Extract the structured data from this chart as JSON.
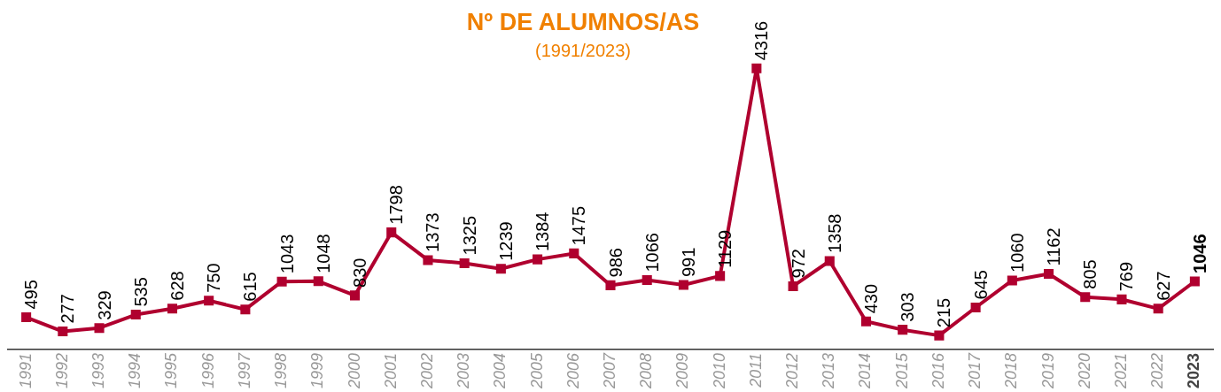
{
  "chart_data": {
    "type": "line",
    "title": "Nº DE ALUMNOS/AS",
    "subtitle": "(1991/2023)",
    "categories": [
      "1991",
      "1992",
      "1993",
      "1994",
      "1995",
      "1996",
      "1997",
      "1998",
      "1999",
      "2000",
      "2001",
      "2002",
      "2003",
      "2004",
      "2005",
      "2006",
      "2007",
      "2008",
      "2009",
      "2010",
      "2011",
      "2012",
      "2013",
      "2014",
      "2015",
      "2016",
      "2017",
      "2018",
      "2019",
      "2020",
      "2021",
      "2022",
      "2023"
    ],
    "series": [
      {
        "color": "#b0002f",
        "values": [
          495,
          277,
          329,
          535,
          628,
          750,
          615,
          1043,
          1048,
          830,
          1798,
          1373,
          1325,
          1239,
          1384,
          1475,
          986,
          1066,
          991,
          1129,
          4316,
          972,
          1358,
          430,
          303,
          215,
          645,
          1060,
          1162,
          805,
          769,
          627,
          1046
        ]
      }
    ],
    "data_labels": true,
    "marker": "square",
    "line_style": "solid",
    "grid": false,
    "legend": false
  }
}
